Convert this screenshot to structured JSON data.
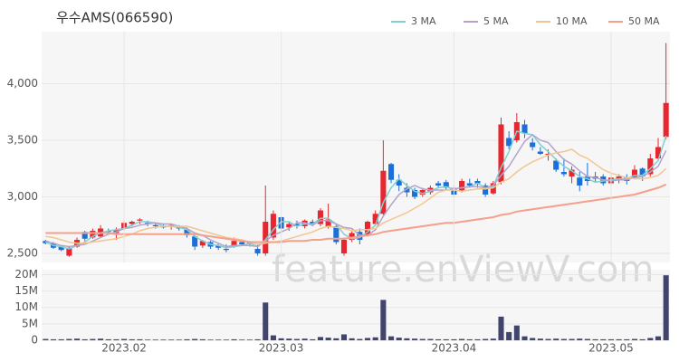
{
  "chart_data": [
    {
      "type": "candlestick",
      "title": "우수AMS(066590)",
      "watermark": "feature.enViewV.com",
      "up_color": "#e8262f",
      "down_color": "#1b6fd8",
      "open": [
        2610,
        2590,
        2560,
        2480,
        2560,
        2690,
        2640,
        2650,
        2700,
        2680,
        2720,
        2760,
        2790,
        2770,
        2750,
        2740,
        2740,
        2730,
        2710,
        2650,
        2570,
        2600,
        2570,
        2540,
        2560,
        2600,
        2600,
        2540,
        2500,
        2640,
        2820,
        2730,
        2760,
        2740,
        2780,
        2760,
        2740,
        2740,
        2500,
        2620,
        2690,
        2660,
        2760,
        2850,
        3290,
        3150,
        3080,
        3060,
        3020,
        3040,
        3120,
        3130,
        3080,
        3050,
        3120,
        3140,
        3100,
        3030,
        3130,
        3520,
        3500,
        3640,
        3480,
        3400,
        3380,
        3320,
        3220,
        3180,
        3170,
        3180,
        3180,
        3180,
        3120,
        3150,
        3170,
        3170,
        3250,
        3200,
        3340,
        3530
      ],
      "high": [
        2620,
        2600,
        2570,
        2560,
        2640,
        2700,
        2720,
        2750,
        2720,
        2730,
        2790,
        2790,
        2810,
        2790,
        2770,
        2760,
        2760,
        2750,
        2730,
        2660,
        2620,
        2610,
        2590,
        2580,
        2640,
        2620,
        2610,
        2580,
        3100,
        2880,
        2830,
        2780,
        2790,
        2800,
        2800,
        2900,
        2940,
        2760,
        2640,
        2700,
        2720,
        2790,
        2880,
        3500,
        3300,
        3200,
        3120,
        3080,
        3080,
        3100,
        3140,
        3150,
        3100,
        3160,
        3160,
        3160,
        3120,
        3140,
        3700,
        3580,
        3740,
        3680,
        3520,
        3440,
        3420,
        3340,
        3340,
        3270,
        3220,
        3300,
        3220,
        3200,
        3200,
        3200,
        3200,
        3280,
        3260,
        3380,
        3520,
        4360
      ],
      "low": [
        2580,
        2540,
        2520,
        2470,
        2550,
        2610,
        2630,
        2640,
        2670,
        2620,
        2700,
        2740,
        2760,
        2740,
        2720,
        2720,
        2710,
        2700,
        2640,
        2530,
        2550,
        2540,
        2530,
        2510,
        2550,
        2570,
        2560,
        2480,
        2480,
        2620,
        2700,
        2700,
        2720,
        2720,
        2740,
        2740,
        2720,
        2580,
        2480,
        2600,
        2580,
        2650,
        2750,
        2840,
        3120,
        3050,
        3000,
        2980,
        3000,
        3020,
        3080,
        3060,
        3000,
        3040,
        3080,
        3080,
        3000,
        3020,
        3110,
        3420,
        3480,
        3520,
        3410,
        3370,
        3320,
        3220,
        3180,
        3120,
        3050,
        3100,
        3130,
        3100,
        3100,
        3120,
        3110,
        3160,
        3140,
        3180,
        3320,
        3510
      ],
      "close": [
        2590,
        2550,
        2530,
        2550,
        2620,
        2630,
        2700,
        2720,
        2690,
        2710,
        2770,
        2780,
        2800,
        2760,
        2740,
        2730,
        2750,
        2720,
        2660,
        2560,
        2610,
        2560,
        2550,
        2530,
        2610,
        2580,
        2590,
        2500,
        2780,
        2850,
        2720,
        2760,
        2740,
        2790,
        2760,
        2880,
        2800,
        2600,
        2620,
        2680,
        2620,
        2780,
        2850,
        3230,
        3150,
        3100,
        3040,
        3000,
        3060,
        3080,
        3100,
        3080,
        3020,
        3140,
        3100,
        3120,
        3020,
        3120,
        3640,
        3450,
        3660,
        3560,
        3440,
        3380,
        3380,
        3240,
        3200,
        3240,
        3100,
        3140,
        3160,
        3120,
        3170,
        3180,
        3140,
        3240,
        3180,
        3340,
        3440,
        3830
      ],
      "series": [
        {
          "name": "3 MA",
          "color": "#7fd0d2",
          "values": [
            2600,
            2570,
            2560,
            2540,
            2570,
            2600,
            2650,
            2680,
            2700,
            2710,
            2720,
            2750,
            2780,
            2780,
            2770,
            2740,
            2740,
            2730,
            2710,
            2650,
            2610,
            2580,
            2570,
            2550,
            2560,
            2570,
            2590,
            2560,
            2620,
            2710,
            2780,
            2780,
            2740,
            2760,
            2760,
            2810,
            2810,
            2760,
            2670,
            2630,
            2640,
            2690,
            2750,
            2950,
            3080,
            3160,
            3100,
            3050,
            3030,
            3050,
            3080,
            3090,
            3070,
            3080,
            3090,
            3120,
            3080,
            3090,
            3260,
            3400,
            3580,
            3560,
            3550,
            3460,
            3400,
            3330,
            3270,
            3230,
            3180,
            3160,
            3130,
            3140,
            3150,
            3160,
            3160,
            3190,
            3190,
            3250,
            3320,
            3540
          ]
        },
        {
          "name": "5 MA",
          "color": "#b3a3cc",
          "values": [
            2610,
            2590,
            2570,
            2560,
            2570,
            2580,
            2610,
            2640,
            2670,
            2690,
            2720,
            2730,
            2750,
            2760,
            2770,
            2760,
            2760,
            2740,
            2720,
            2680,
            2660,
            2620,
            2590,
            2560,
            2570,
            2570,
            2570,
            2560,
            2610,
            2660,
            2690,
            2720,
            2770,
            2770,
            2750,
            2790,
            2790,
            2760,
            2730,
            2720,
            2660,
            2660,
            2710,
            2830,
            2930,
            3020,
            3070,
            3100,
            3070,
            3060,
            3060,
            3060,
            3070,
            3080,
            3090,
            3090,
            3080,
            3100,
            3190,
            3270,
            3380,
            3490,
            3550,
            3500,
            3480,
            3400,
            3330,
            3290,
            3230,
            3180,
            3170,
            3150,
            3140,
            3150,
            3150,
            3170,
            3180,
            3220,
            3270,
            3410
          ]
        },
        {
          "name": "10 MA",
          "color": "#f2c690",
          "values": [
            2650,
            2640,
            2620,
            2600,
            2590,
            2590,
            2600,
            2610,
            2620,
            2630,
            2650,
            2670,
            2700,
            2720,
            2730,
            2740,
            2740,
            2740,
            2740,
            2720,
            2700,
            2680,
            2660,
            2640,
            2630,
            2620,
            2600,
            2580,
            2590,
            2600,
            2610,
            2630,
            2650,
            2670,
            2690,
            2720,
            2740,
            2730,
            2720,
            2700,
            2710,
            2710,
            2720,
            2770,
            2800,
            2830,
            2860,
            2900,
            2940,
            2990,
            3040,
            3060,
            3060,
            3050,
            3060,
            3070,
            3070,
            3080,
            3130,
            3160,
            3220,
            3270,
            3310,
            3340,
            3370,
            3390,
            3400,
            3420,
            3370,
            3340,
            3290,
            3240,
            3210,
            3190,
            3170,
            3160,
            3160,
            3170,
            3190,
            3250
          ]
        },
        {
          "name": "50 MA",
          "color": "#f4a08b",
          "values": [
            2680,
            2680,
            2680,
            2680,
            2680,
            2680,
            2680,
            2680,
            2680,
            2670,
            2670,
            2670,
            2670,
            2670,
            2670,
            2670,
            2670,
            2670,
            2670,
            2670,
            2660,
            2650,
            2640,
            2630,
            2620,
            2610,
            2600,
            2600,
            2600,
            2600,
            2600,
            2610,
            2610,
            2610,
            2620,
            2620,
            2630,
            2630,
            2630,
            2640,
            2650,
            2660,
            2670,
            2690,
            2700,
            2710,
            2720,
            2730,
            2740,
            2750,
            2760,
            2770,
            2770,
            2780,
            2790,
            2800,
            2810,
            2820,
            2840,
            2850,
            2870,
            2880,
            2890,
            2900,
            2910,
            2920,
            2930,
            2940,
            2950,
            2960,
            2970,
            2980,
            2990,
            3000,
            3010,
            3020,
            3040,
            3060,
            3080,
            3110
          ]
        }
      ],
      "ylim": [
        2420,
        4460
      ],
      "yticks": [
        {
          "value": 2500,
          "label": "2,500"
        },
        {
          "value": 3000,
          "label": "3,000"
        },
        {
          "value": 3500,
          "label": "3,500"
        },
        {
          "value": 4000,
          "label": "4,000"
        }
      ],
      "grid": true
    },
    {
      "type": "bar",
      "color": "#41446c",
      "categories": [
        null,
        null,
        null,
        null,
        null,
        null,
        null,
        null,
        null,
        null,
        "2023.02",
        null,
        null,
        null,
        null,
        null,
        null,
        null,
        null,
        null,
        null,
        null,
        null,
        null,
        null,
        null,
        null,
        null,
        null,
        null,
        "2023.03",
        null,
        null,
        null,
        null,
        null,
        null,
        null,
        null,
        null,
        null,
        null,
        null,
        null,
        null,
        null,
        null,
        null,
        null,
        null,
        null,
        null,
        "2023.04",
        null,
        null,
        null,
        null,
        null,
        null,
        null,
        null,
        null,
        null,
        null,
        null,
        null,
        null,
        null,
        null,
        null,
        null,
        null,
        "2023.05",
        null,
        null,
        null,
        null,
        null,
        null,
        null
      ],
      "values": [
        400000,
        300000,
        300000,
        400000,
        500000,
        300000,
        400000,
        500000,
        300000,
        300000,
        400000,
        300000,
        300000,
        200000,
        200000,
        200000,
        200000,
        200000,
        300000,
        400000,
        300000,
        200000,
        200000,
        200000,
        300000,
        200000,
        200000,
        300000,
        11500000,
        1500000,
        600000,
        500000,
        400000,
        500000,
        300000,
        1000000,
        800000,
        600000,
        1800000,
        600000,
        400000,
        700000,
        900000,
        12300000,
        1200000,
        800000,
        600000,
        500000,
        400000,
        400000,
        300000,
        300000,
        300000,
        400000,
        300000,
        300000,
        400000,
        500000,
        7200000,
        2500000,
        4500000,
        1200000,
        700000,
        500000,
        400000,
        500000,
        400000,
        400000,
        500000,
        400000,
        300000,
        300000,
        300000,
        300000,
        300000,
        400000,
        300000,
        700000,
        1200000,
        19800000
      ],
      "ylim": [
        0,
        21500000
      ],
      "yticks": [
        0,
        {
          "value": 5000000,
          "label": "5M"
        },
        {
          "value": 10000000,
          "label": "10M"
        },
        {
          "value": 15000000,
          "label": "15M"
        },
        {
          "value": 20000000,
          "label": "20M"
        }
      ],
      "grid": true
    }
  ]
}
